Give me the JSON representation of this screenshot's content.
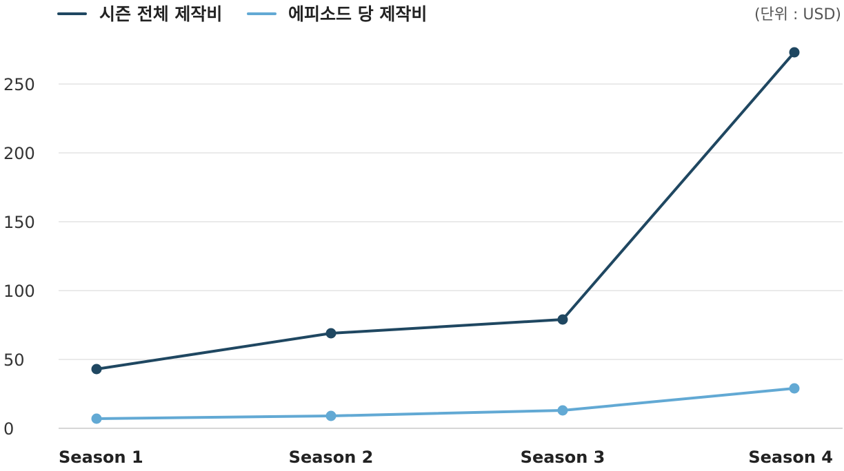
{
  "chart_data": {
    "type": "line",
    "title": "",
    "xlabel": "",
    "ylabel": "",
    "unit_label": "(단위 : USD)",
    "categories": [
      "Season 1",
      "Season 2",
      "Season 3",
      "Season 4"
    ],
    "series": [
      {
        "name": "시즌 전체 제작비",
        "color": "#1f4761",
        "values": [
          43,
          69,
          79,
          273
        ]
      },
      {
        "name": "에피소드 당 제작비",
        "color": "#62a9d4",
        "values": [
          7,
          9,
          13,
          29
        ]
      }
    ],
    "ylim": [
      0,
      280
    ],
    "yticks": [
      0,
      50,
      100,
      150,
      200,
      250
    ],
    "grid": true,
    "legend_position": "top-left"
  }
}
